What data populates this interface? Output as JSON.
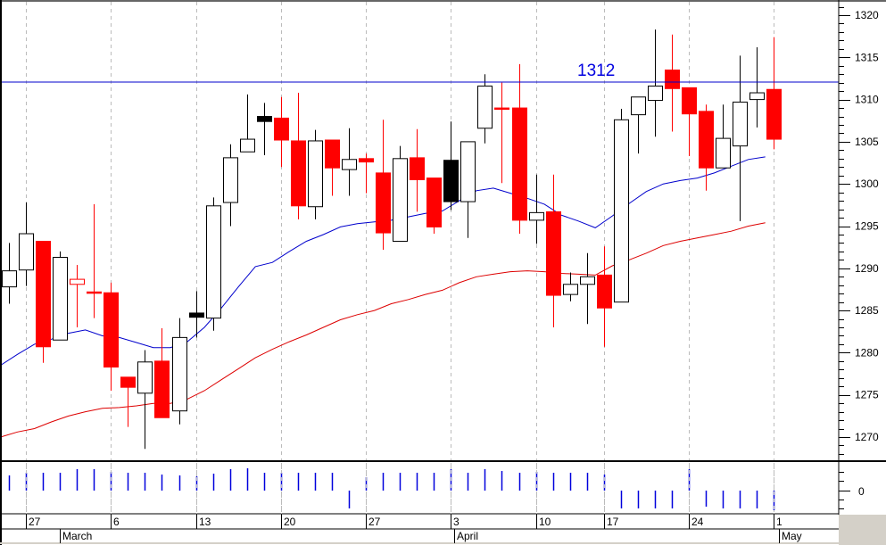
{
  "chart_data": {
    "type": "candlestick",
    "title": "",
    "xlabel": "",
    "ylabel": "",
    "ylim": [
      1266.5,
      1321.5
    ],
    "y_ticks": [
      1270,
      1275,
      1280,
      1285,
      1290,
      1295,
      1300,
      1305,
      1310,
      1315,
      1320
    ],
    "grid": {
      "vertical_dashed": true,
      "horizontal": false
    },
    "x_tick_labels": [
      {
        "label": "27",
        "index": 1
      },
      {
        "label": "6",
        "index": 6
      },
      {
        "label": "13",
        "index": 11
      },
      {
        "label": "20",
        "index": 16
      },
      {
        "label": "27",
        "index": 21
      },
      {
        "label": "3",
        "index": 26
      },
      {
        "label": "10",
        "index": 31
      },
      {
        "label": "17",
        "index": 35
      },
      {
        "label": "24",
        "index": 40
      },
      {
        "label": "1",
        "index": 45
      }
    ],
    "month_labels": [
      {
        "label": "March",
        "index": 3
      },
      {
        "label": "April",
        "index": 26
      },
      {
        "label": "May",
        "index": 45
      }
    ],
    "candles": [
      {
        "o": 1287.8,
        "h": 1293.0,
        "l": 1285.8,
        "c": 1289.7,
        "color": "white"
      },
      {
        "o": 1289.8,
        "h": 1297.8,
        "l": 1287.9,
        "c": 1294.1,
        "color": "white"
      },
      {
        "o": 1293.2,
        "h": 1293.2,
        "l": 1278.8,
        "c": 1280.7,
        "color": "red"
      },
      {
        "o": 1281.5,
        "h": 1292.0,
        "l": 1281.5,
        "c": 1291.3,
        "color": "white"
      },
      {
        "o": 1288.7,
        "h": 1290.4,
        "l": 1283.0,
        "c": 1288.1,
        "color": "red-hollow"
      },
      {
        "o": 1287.2,
        "h": 1297.6,
        "l": 1284.1,
        "c": 1287.2,
        "color": "red"
      },
      {
        "o": 1287.1,
        "h": 1288.3,
        "l": 1275.5,
        "c": 1278.3,
        "color": "red"
      },
      {
        "o": 1277.1,
        "h": 1277.1,
        "l": 1271.2,
        "c": 1275.9,
        "color": "red"
      },
      {
        "o": 1275.2,
        "h": 1280.3,
        "l": 1268.6,
        "c": 1278.9,
        "color": "white"
      },
      {
        "o": 1279.0,
        "h": 1282.9,
        "l": 1272.3,
        "c": 1272.3,
        "color": "red"
      },
      {
        "o": 1273.1,
        "h": 1284.1,
        "l": 1271.5,
        "c": 1281.8,
        "color": "white"
      },
      {
        "o": 1284.7,
        "h": 1287.3,
        "l": 1281.8,
        "c": 1284.2,
        "color": "black"
      },
      {
        "o": 1284.1,
        "h": 1298.4,
        "l": 1282.6,
        "c": 1297.4,
        "color": "white"
      },
      {
        "o": 1297.8,
        "h": 1304.7,
        "l": 1295.0,
        "c": 1303.1,
        "color": "white"
      },
      {
        "o": 1303.8,
        "h": 1310.6,
        "l": 1303.8,
        "c": 1305.3,
        "color": "white"
      },
      {
        "o": 1308.0,
        "h": 1309.6,
        "l": 1303.4,
        "c": 1307.4,
        "color": "black"
      },
      {
        "o": 1307.8,
        "h": 1310.3,
        "l": 1302.0,
        "c": 1305.2,
        "color": "red"
      },
      {
        "o": 1305.1,
        "h": 1310.8,
        "l": 1295.8,
        "c": 1297.4,
        "color": "red"
      },
      {
        "o": 1297.3,
        "h": 1306.4,
        "l": 1295.8,
        "c": 1305.1,
        "color": "white"
      },
      {
        "o": 1305.2,
        "h": 1305.2,
        "l": 1298.6,
        "c": 1301.9,
        "color": "red"
      },
      {
        "o": 1301.7,
        "h": 1306.6,
        "l": 1298.6,
        "c": 1302.9,
        "color": "white"
      },
      {
        "o": 1303.0,
        "h": 1303.6,
        "l": 1298.9,
        "c": 1302.6,
        "color": "red"
      },
      {
        "o": 1301.3,
        "h": 1307.6,
        "l": 1292.2,
        "c": 1294.2,
        "color": "red"
      },
      {
        "o": 1293.2,
        "h": 1304.5,
        "l": 1293.2,
        "c": 1303.0,
        "color": "white"
      },
      {
        "o": 1303.1,
        "h": 1306.5,
        "l": 1296.7,
        "c": 1300.5,
        "color": "red"
      },
      {
        "o": 1300.7,
        "h": 1300.7,
        "l": 1294.1,
        "c": 1294.9,
        "color": "red"
      },
      {
        "o": 1297.9,
        "h": 1307.4,
        "l": 1296.9,
        "c": 1302.8,
        "color": "black"
      },
      {
        "o": 1297.9,
        "h": 1303.6,
        "l": 1293.6,
        "c": 1305.0,
        "color": "white"
      },
      {
        "o": 1306.6,
        "h": 1313.0,
        "l": 1304.8,
        "c": 1311.6,
        "color": "white"
      },
      {
        "o": 1309.0,
        "h": 1312.0,
        "l": 1300.1,
        "c": 1309.0,
        "color": "red"
      },
      {
        "o": 1309.0,
        "h": 1314.2,
        "l": 1294.1,
        "c": 1295.7,
        "color": "red"
      },
      {
        "o": 1295.7,
        "h": 1301.1,
        "l": 1292.9,
        "c": 1296.6,
        "color": "white"
      },
      {
        "o": 1296.7,
        "h": 1301.1,
        "l": 1283.0,
        "c": 1286.8,
        "color": "red"
      },
      {
        "o": 1286.9,
        "h": 1289.5,
        "l": 1286.1,
        "c": 1288.1,
        "color": "white"
      },
      {
        "o": 1288.1,
        "h": 1291.8,
        "l": 1283.4,
        "c": 1289.0,
        "color": "white"
      },
      {
        "o": 1289.2,
        "h": 1292.6,
        "l": 1280.7,
        "c": 1285.3,
        "color": "red"
      },
      {
        "o": 1286.0,
        "h": 1308.9,
        "l": 1286.0,
        "c": 1307.6,
        "color": "white"
      },
      {
        "o": 1308.2,
        "h": 1310.3,
        "l": 1303.6,
        "c": 1310.3,
        "color": "white"
      },
      {
        "o": 1309.9,
        "h": 1318.3,
        "l": 1305.6,
        "c": 1311.6,
        "color": "white"
      },
      {
        "o": 1313.5,
        "h": 1317.7,
        "l": 1306.2,
        "c": 1311.3,
        "color": "red"
      },
      {
        "o": 1311.4,
        "h": 1311.4,
        "l": 1303.3,
        "c": 1308.3,
        "color": "red"
      },
      {
        "o": 1308.6,
        "h": 1309.4,
        "l": 1299.2,
        "c": 1301.9,
        "color": "red"
      },
      {
        "o": 1301.9,
        "h": 1309.4,
        "l": 1301.9,
        "c": 1305.4,
        "color": "white"
      },
      {
        "o": 1304.5,
        "h": 1315.2,
        "l": 1295.6,
        "c": 1309.7,
        "color": "white"
      },
      {
        "o": 1310.0,
        "h": 1316.2,
        "l": 1306.7,
        "c": 1310.8,
        "color": "white"
      },
      {
        "o": 1311.2,
        "h": 1317.4,
        "l": 1304.1,
        "c": 1305.3,
        "color": "red"
      }
    ],
    "series": [
      {
        "name": "short moving average",
        "color": "#0000cc",
        "values": [
          1278.5,
          1279.8,
          1281.0,
          1281.6,
          1282.3,
          1282.7,
          1282.0,
          1281.8,
          1281.2,
          1280.6,
          1280.6,
          1281.3,
          1283.0,
          1285.3,
          1287.8,
          1290.2,
          1290.7,
          1292.0,
          1293.2,
          1294.0,
          1294.9,
          1295.3,
          1295.5,
          1295.7,
          1296.1,
          1296.5,
          1296.8,
          1298.0,
          1299.2,
          1299.5,
          1298.9,
          1298.3,
          1297.6,
          1296.3,
          1295.6,
          1294.8,
          1296.2,
          1297.7,
          1299.1,
          1300.0,
          1300.4,
          1300.7,
          1301.3,
          1302.1,
          1302.9,
          1303.2
        ]
      },
      {
        "name": "long moving average",
        "color": "#dd0000",
        "values": [
          1270.0,
          1270.6,
          1271.0,
          1271.8,
          1272.5,
          1273.0,
          1273.4,
          1273.5,
          1273.7,
          1274.0,
          1274.0,
          1274.5,
          1275.5,
          1276.8,
          1278.1,
          1279.4,
          1280.4,
          1281.3,
          1282.1,
          1283.0,
          1283.9,
          1284.5,
          1285.0,
          1285.8,
          1286.3,
          1286.9,
          1287.4,
          1288.3,
          1289.0,
          1289.3,
          1289.6,
          1289.7,
          1289.6,
          1289.4,
          1289.3,
          1289.2,
          1290.3,
          1291.0,
          1291.8,
          1292.7,
          1293.2,
          1293.6,
          1294.0,
          1294.4,
          1295.0,
          1295.4
        ]
      }
    ],
    "annotations": [
      {
        "type": "hline",
        "value": 1312,
        "label": "1312",
        "color": "#0000cc"
      }
    ],
    "indicator_panel": {
      "zero_label": "0",
      "bars": [
        1,
        1,
        1,
        1,
        1,
        1,
        1,
        1,
        1,
        1,
        1,
        1,
        1,
        1,
        1,
        1,
        1,
        1,
        1,
        1,
        -1,
        1,
        1,
        1,
        1,
        1,
        1,
        1,
        1,
        1,
        1,
        1,
        1,
        1,
        1,
        1,
        -1,
        -1,
        -1,
        -1,
        1,
        -1,
        -1,
        -1,
        -1,
        -1
      ],
      "bar_heights": [
        17,
        20,
        20,
        20,
        24,
        24,
        21,
        20,
        20,
        18,
        17,
        16,
        19,
        24,
        25,
        20,
        20,
        20,
        20,
        20,
        20,
        15,
        20,
        20,
        20,
        20,
        24,
        20,
        24,
        22,
        20,
        21,
        20,
        20,
        20,
        18,
        20,
        20,
        20,
        20,
        24,
        18,
        20,
        20,
        20,
        22
      ],
      "color": "#0000dd"
    }
  },
  "y_axis": {
    "labels": [
      "1320",
      "1315",
      "1310",
      "1305",
      "1300",
      "1295",
      "1290",
      "1285",
      "1280",
      "1275",
      "1270"
    ]
  },
  "x_axis": {
    "day_labels": [
      "27",
      "6",
      "13",
      "20",
      "27",
      "3",
      "10",
      "17",
      "24",
      "1"
    ],
    "month_labels": [
      "March",
      "April",
      "May"
    ]
  },
  "annotation_label": "1312",
  "indicator_zero_label": "0"
}
